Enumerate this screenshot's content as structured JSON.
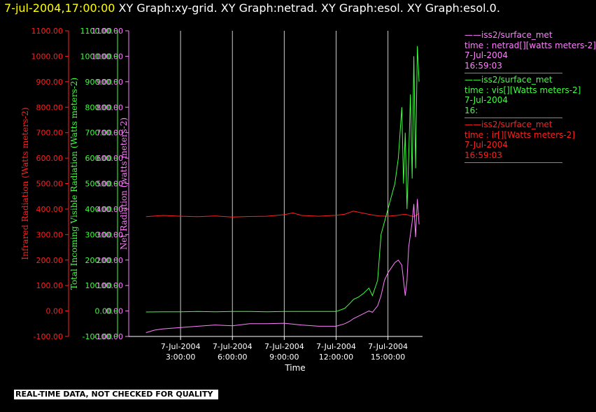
{
  "header": {
    "time": "7-jul-2004,17:00:00",
    "graphs": "XY Graph:xy-grid.  XY Graph:netrad.  XY Graph:esol.  XY Graph:esol.0."
  },
  "disclaimer": "REAL-TIME DATA, NOT CHECKED FOR QUALITY",
  "legend": [
    {
      "color": "#ff80ff",
      "lines": [
        "——iss2/surface_met",
        "time : netrad[][watts meters-2]",
        "7-Jul-2004",
        "16:59:03"
      ]
    },
    {
      "color": "#40ff40",
      "lines": [
        "——iss2/surface_met",
        "time : vis[][Watts meters-2]",
        "7-Jul-2004",
        "16:"
      ]
    },
    {
      "color": "#ff2020",
      "lines": [
        "——iss2/surface_met",
        "time : ir[][Watts meters-2]",
        "7-Jul-2004",
        "16:59:03"
      ]
    }
  ],
  "chart_data": {
    "type": "line",
    "xlabel": "Time",
    "x_ticks": [
      {
        "hour": 3,
        "date": "7-Jul-2004",
        "time": "3:00:00"
      },
      {
        "hour": 6,
        "date": "7-Jul-2004",
        "time": "6:00:00"
      },
      {
        "hour": 9,
        "date": "7-Jul-2004",
        "time": "9:00:00"
      },
      {
        "hour": 12,
        "date": "7-Jul-2004",
        "time": "12:00:00"
      },
      {
        "hour": 15,
        "date": "7-Jul-2004",
        "time": "15:00:00"
      }
    ],
    "xlim_hours": [
      0,
      17.0
    ],
    "grid": "vertical",
    "axes": [
      {
        "label": "Infrared Radiation (Watts meters-2)",
        "color": "#ff2020",
        "ylim": [
          -100,
          1100
        ],
        "ticks": [
          "-100.00",
          "0.00",
          "100.00",
          "200.00",
          "300.00",
          "400.00",
          "500.00",
          "600.00",
          "700.00",
          "800.00",
          "900.00",
          "1000.00",
          "1100.00"
        ]
      },
      {
        "label": "Total Incoming Visible Radiation (Watts meters-2)",
        "color": "#40ff40",
        "ylim": [
          -100,
          1100
        ],
        "ticks": [
          "-100.00",
          "0.00",
          "100.00",
          "200.00",
          "300.00",
          "400.00",
          "500.00",
          "600.00",
          "700.00",
          "800.00",
          "900.00",
          "1000.00",
          "1100.00"
        ]
      },
      {
        "label": "Net Radiation (watts meters-2)",
        "color": "#ff80ff",
        "ylim": [
          -100,
          1100
        ],
        "ticks": [
          "-100.00",
          "0.00",
          "100.00",
          "200.00",
          "300.00",
          "400.00",
          "500.00",
          "600.00",
          "700.00",
          "800.00",
          "900.00",
          "1000.00",
          "1100.00"
        ]
      }
    ],
    "series": [
      {
        "color": "#ff2020",
        "x": [
          1.0,
          2.0,
          3.0,
          4.0,
          5.0,
          6.0,
          7.0,
          8.0,
          9.0,
          9.5,
          10.0,
          11.0,
          12.0,
          12.5,
          13.0,
          13.5,
          14.0,
          14.5,
          15.0,
          15.5,
          16.0,
          16.5,
          16.8
        ],
        "y": [
          370,
          375,
          372,
          370,
          373,
          369,
          371,
          372,
          378,
          385,
          375,
          372,
          376,
          380,
          392,
          385,
          378,
          373,
          372,
          375,
          380,
          370,
          383
        ]
      },
      {
        "color": "#40ff40",
        "x": [
          1.0,
          2.0,
          3.0,
          4.0,
          5.0,
          6.0,
          7.0,
          8.0,
          9.0,
          10.0,
          11.0,
          12.0,
          12.5,
          12.8,
          13.0,
          13.3,
          13.6,
          13.9,
          14.1,
          14.4,
          14.6,
          14.8,
          15.0,
          15.2,
          15.4,
          15.6,
          15.8,
          15.9,
          16.0,
          16.1,
          16.2,
          16.3,
          16.4,
          16.5,
          16.6,
          16.7,
          16.8
        ],
        "y": [
          -4,
          -3,
          -3,
          -2,
          -3,
          -2,
          -2,
          -3,
          -2,
          -2,
          -2,
          -2,
          10,
          30,
          45,
          55,
          70,
          90,
          60,
          120,
          300,
          350,
          400,
          450,
          500,
          600,
          800,
          500,
          700,
          400,
          600,
          850,
          520,
          1000,
          560,
          1040,
          900
        ]
      },
      {
        "color": "#ff80ff",
        "x": [
          1.0,
          1.5,
          2.0,
          3.0,
          4.0,
          5.0,
          6.0,
          7.0,
          8.0,
          9.0,
          10.0,
          11.0,
          12.0,
          12.5,
          12.8,
          13.0,
          13.3,
          13.6,
          13.9,
          14.1,
          14.4,
          14.6,
          14.8,
          15.0,
          15.2,
          15.4,
          15.6,
          15.8,
          16.0,
          16.1,
          16.2,
          16.3,
          16.4,
          16.5,
          16.6,
          16.7,
          16.8
        ],
        "y": [
          -85,
          -75,
          -70,
          -65,
          -60,
          -55,
          -58,
          -50,
          -50,
          -48,
          -55,
          -60,
          -60,
          -50,
          -40,
          -30,
          -20,
          -10,
          0,
          -5,
          20,
          60,
          120,
          150,
          170,
          190,
          200,
          180,
          60,
          120,
          250,
          300,
          350,
          420,
          290,
          440,
          340
        ]
      }
    ]
  }
}
